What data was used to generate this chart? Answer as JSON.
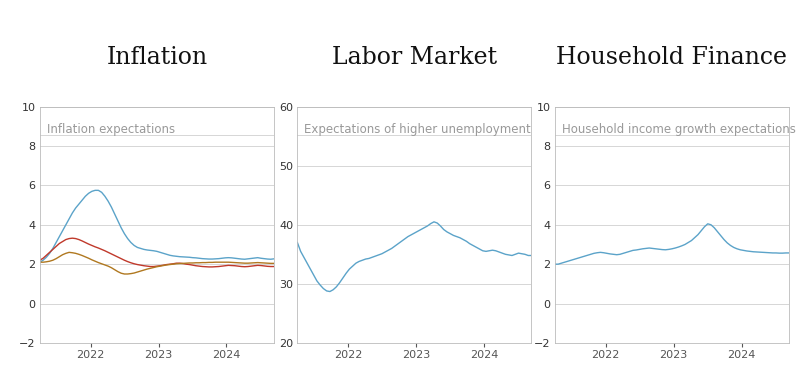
{
  "title_inflation": "Inflation",
  "title_labor": "Labor Market",
  "title_household": "Household Finance",
  "subtitle_inflation": "Inflation expectations",
  "subtitle_labor": "Expectations of higher unemployment",
  "subtitle_household": "Household income growth expectations",
  "inflation": {
    "ylim": [
      -2,
      10
    ],
    "yticks": [
      -2,
      0,
      2,
      4,
      6,
      8,
      10
    ],
    "xtick_years": [
      2022,
      2023,
      2024
    ],
    "blue": [
      2.1,
      2.2,
      2.35,
      2.55,
      2.8,
      3.1,
      3.4,
      3.7,
      4.0,
      4.3,
      4.6,
      4.85,
      5.05,
      5.25,
      5.45,
      5.6,
      5.7,
      5.75,
      5.75,
      5.65,
      5.45,
      5.2,
      4.9,
      4.55,
      4.2,
      3.85,
      3.55,
      3.3,
      3.1,
      2.95,
      2.85,
      2.8,
      2.75,
      2.72,
      2.7,
      2.68,
      2.65,
      2.6,
      2.55,
      2.5,
      2.45,
      2.42,
      2.4,
      2.38,
      2.37,
      2.36,
      2.35,
      2.33,
      2.32,
      2.3,
      2.28,
      2.27,
      2.26,
      2.26,
      2.27,
      2.28,
      2.3,
      2.32,
      2.33,
      2.32,
      2.3,
      2.28,
      2.26,
      2.25,
      2.27,
      2.29,
      2.31,
      2.33,
      2.3,
      2.28,
      2.26,
      2.25,
      2.27
    ],
    "red": [
      2.2,
      2.3,
      2.45,
      2.6,
      2.75,
      2.9,
      3.05,
      3.15,
      3.25,
      3.3,
      3.32,
      3.3,
      3.25,
      3.18,
      3.1,
      3.02,
      2.95,
      2.88,
      2.82,
      2.75,
      2.68,
      2.6,
      2.52,
      2.44,
      2.36,
      2.28,
      2.2,
      2.13,
      2.07,
      2.02,
      1.98,
      1.95,
      1.92,
      1.9,
      1.88,
      1.88,
      1.9,
      1.92,
      1.95,
      1.98,
      2.0,
      2.02,
      2.05,
      2.05,
      2.03,
      2.0,
      1.98,
      1.95,
      1.92,
      1.9,
      1.88,
      1.87,
      1.86,
      1.86,
      1.87,
      1.88,
      1.9,
      1.92,
      1.94,
      1.93,
      1.92,
      1.9,
      1.88,
      1.87,
      1.88,
      1.9,
      1.92,
      1.94,
      1.93,
      1.91,
      1.89,
      1.88,
      1.88
    ],
    "gold": [
      2.1,
      2.1,
      2.12,
      2.15,
      2.2,
      2.28,
      2.38,
      2.48,
      2.55,
      2.6,
      2.58,
      2.55,
      2.5,
      2.44,
      2.37,
      2.3,
      2.22,
      2.15,
      2.08,
      2.02,
      1.96,
      1.9,
      1.82,
      1.72,
      1.62,
      1.54,
      1.5,
      1.5,
      1.52,
      1.55,
      1.6,
      1.65,
      1.7,
      1.75,
      1.79,
      1.83,
      1.87,
      1.9,
      1.93,
      1.96,
      1.98,
      2.0,
      2.02,
      2.03,
      2.04,
      2.05,
      2.06,
      2.06,
      2.07,
      2.07,
      2.08,
      2.08,
      2.09,
      2.09,
      2.1,
      2.1,
      2.1,
      2.1,
      2.1,
      2.09,
      2.08,
      2.07,
      2.06,
      2.05,
      2.05,
      2.06,
      2.07,
      2.08,
      2.07,
      2.06,
      2.05,
      2.04,
      2.04
    ]
  },
  "labor": {
    "ylim": [
      20,
      60
    ],
    "yticks": [
      20,
      30,
      40,
      50,
      60
    ],
    "xtick_years": [
      2022,
      2023,
      2024
    ],
    "blue": [
      37.0,
      35.5,
      34.5,
      33.5,
      32.5,
      31.5,
      30.5,
      29.8,
      29.2,
      28.8,
      28.7,
      29.0,
      29.5,
      30.2,
      31.0,
      31.8,
      32.5,
      33.0,
      33.5,
      33.8,
      34.0,
      34.2,
      34.3,
      34.5,
      34.7,
      34.9,
      35.1,
      35.4,
      35.7,
      36.0,
      36.4,
      36.8,
      37.2,
      37.6,
      38.0,
      38.3,
      38.6,
      38.9,
      39.2,
      39.5,
      39.8,
      40.2,
      40.5,
      40.3,
      39.8,
      39.2,
      38.8,
      38.5,
      38.2,
      38.0,
      37.8,
      37.5,
      37.2,
      36.8,
      36.5,
      36.2,
      35.9,
      35.6,
      35.5,
      35.6,
      35.7,
      35.6,
      35.4,
      35.2,
      35.0,
      34.9,
      34.8,
      35.0,
      35.2,
      35.1,
      35.0,
      34.8,
      34.8
    ]
  },
  "household": {
    "ylim": [
      -2,
      10
    ],
    "yticks": [
      -2,
      0,
      2,
      4,
      6,
      8,
      10
    ],
    "xtick_years": [
      2022,
      2023,
      2024
    ],
    "blue": [
      2.0,
      2.0,
      2.05,
      2.1,
      2.15,
      2.2,
      2.25,
      2.3,
      2.35,
      2.4,
      2.45,
      2.5,
      2.55,
      2.58,
      2.6,
      2.58,
      2.55,
      2.52,
      2.5,
      2.48,
      2.5,
      2.55,
      2.6,
      2.65,
      2.7,
      2.72,
      2.75,
      2.78,
      2.8,
      2.82,
      2.8,
      2.78,
      2.76,
      2.74,
      2.73,
      2.75,
      2.78,
      2.82,
      2.87,
      2.93,
      3.0,
      3.1,
      3.2,
      3.35,
      3.5,
      3.7,
      3.9,
      4.05,
      4.0,
      3.85,
      3.65,
      3.45,
      3.25,
      3.08,
      2.95,
      2.85,
      2.78,
      2.73,
      2.7,
      2.67,
      2.65,
      2.63,
      2.62,
      2.61,
      2.6,
      2.59,
      2.58,
      2.57,
      2.57,
      2.56,
      2.56,
      2.57,
      2.57
    ]
  },
  "line_color_blue": "#5BA3C9",
  "line_color_red": "#C0392B",
  "line_color_gold": "#B07820",
  "grid_color": "#D0D0D0",
  "bg_color": "#FFFFFF",
  "panel_bg": "#FFFFFF",
  "border_color": "#BBBBBB",
  "title_fontsize": 17,
  "subtitle_fontsize": 8.5,
  "tick_fontsize": 8,
  "n_points": 73,
  "x_start_year": 2021.25,
  "x_end_year": 2024.7
}
